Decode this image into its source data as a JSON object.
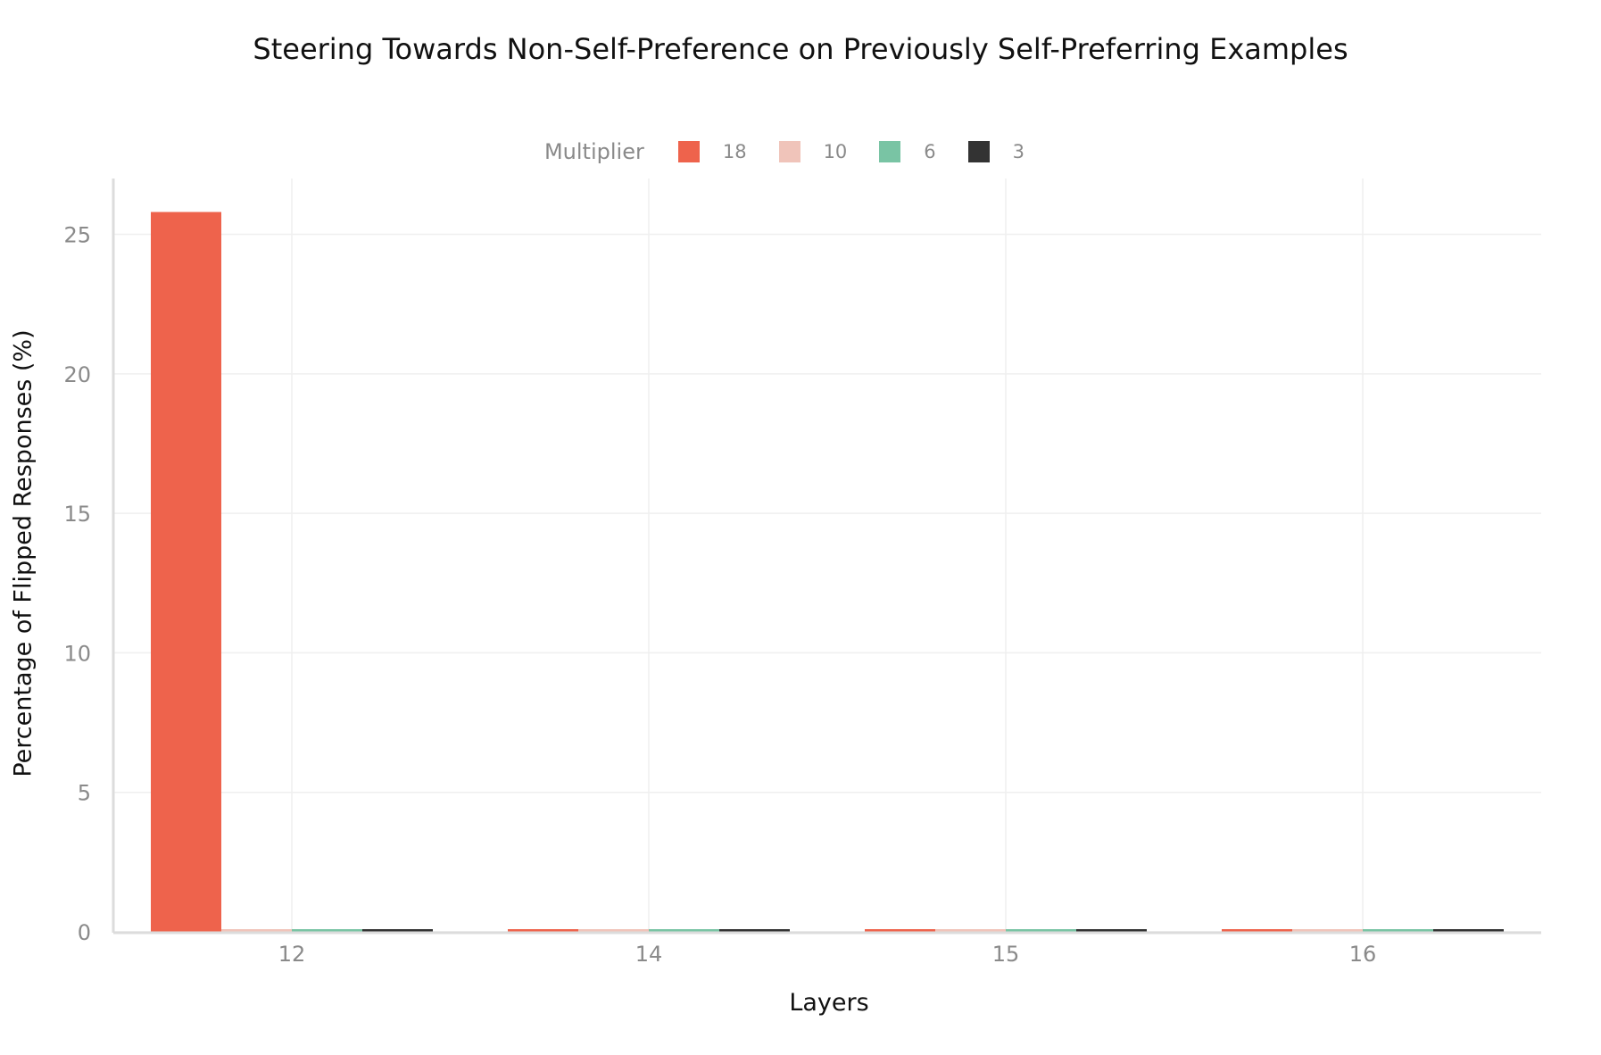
{
  "chart_data": {
    "type": "bar",
    "title": "Steering Towards Non-Self-Preference on Previously Self-Preferring Examples",
    "xlabel": "Layers",
    "ylabel": "Percentage of Flipped Responses (%)",
    "categories": [
      "12",
      "14",
      "15",
      "16"
    ],
    "legend_title": "Multiplier",
    "legend_position": "top",
    "ylim": [
      0,
      27
    ],
    "yticks": [
      0,
      5,
      10,
      15,
      20,
      25
    ],
    "grid": true,
    "series": [
      {
        "name": "18",
        "color": "#EE634C",
        "values": [
          25.8,
          0,
          0,
          0
        ]
      },
      {
        "name": "10",
        "color": "#F0C4BA",
        "values": [
          0,
          0,
          0,
          0
        ]
      },
      {
        "name": "6",
        "color": "#79C4A4",
        "values": [
          0,
          0,
          0,
          0
        ]
      },
      {
        "name": "3",
        "color": "#333333",
        "values": [
          0,
          0,
          0,
          0
        ]
      }
    ]
  }
}
